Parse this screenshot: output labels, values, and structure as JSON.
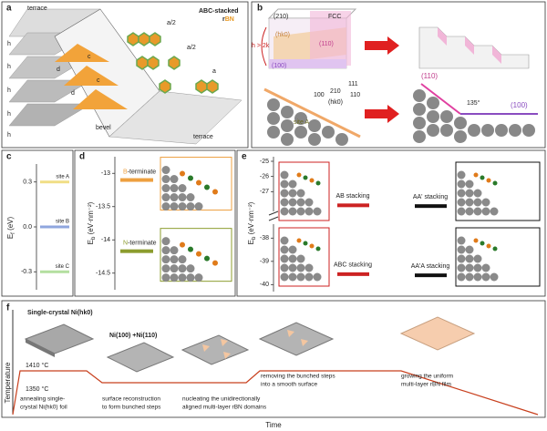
{
  "panel_a": {
    "label": "a",
    "title": "ABC-stacked",
    "material_prefix": "r",
    "material": "BN",
    "terrace": "terrace",
    "bevel": "bevel",
    "h": "h",
    "d": "d",
    "c": "c",
    "half_a": "a/2",
    "a": "a"
  },
  "panel_b": {
    "label": "b",
    "fcc": "FCC",
    "plane_210": "(210)",
    "plane_hk0": "(hk0)",
    "plane_110": "(110)",
    "plane_100": "(100)",
    "condition": "h > 2k",
    "dir_111": "111",
    "dir_100": "100",
    "dir_210": "210",
    "dir_110": "110",
    "site": "site A",
    "angle": "135°"
  },
  "panel_c": {
    "label": "c",
    "ylabel": "E",
    "ylabel_sub": "f",
    "ylabel_unit": " (eV)",
    "ylim": [
      -0.42,
      0.42
    ],
    "yticks": [
      0.3,
      {
        "value": 0,
        "label": "0.0"
      },
      -0.3
    ],
    "sites": [
      {
        "name": "site A",
        "value": 0.3,
        "color": "#f1de86"
      },
      {
        "name": "site B",
        "value": 0.0,
        "color": "#8fa6de"
      },
      {
        "name": "site C",
        "value": -0.3,
        "color": "#b4dfa0"
      }
    ]
  },
  "panel_d": {
    "label": "d",
    "ylabel": "E",
    "ylabel_sub": "b",
    "ylabel_unit": " (eV·nm⁻²)",
    "ylim": [
      -14.75,
      -12.75
    ],
    "yticks": [
      -13,
      -13.5,
      -14,
      -14.5
    ],
    "terminations": [
      {
        "prefix": "B",
        "name": "-terminate",
        "value": -13.1,
        "color": "#eea040"
      },
      {
        "prefix": "N",
        "name": "-terminate",
        "value": -14.17,
        "color": "#8c9c2e"
      }
    ]
  },
  "panel_e": {
    "label": "e",
    "ylabel": "E",
    "ylabel_sub": "b",
    "ylabel_unit": " (eV·nm⁻²)",
    "ylim_top": [
      -28.3,
      -24.7
    ],
    "yticks_top": [
      -25,
      -26,
      -27
    ],
    "ylim_bottom": [
      -40.3,
      -37.4
    ],
    "yticks_bottom": [
      -38,
      -39,
      -40
    ],
    "stackings": [
      {
        "name": "AB stacking",
        "value": -27.9,
        "color": "#cc2222"
      },
      {
        "name": "AA' stacking",
        "value": -27.95,
        "color": "#111111"
      },
      {
        "name": "ABC stacking",
        "value": -39.55,
        "color": "#cc2222"
      },
      {
        "name": "AA'A stacking",
        "value": -39.6,
        "color": "#111111"
      }
    ]
  },
  "panel_f": {
    "label": "f",
    "title": "Single-crystal Ni(hk0)",
    "subtitle": "Ni(100) +Ni(110)",
    "temp_high": "1410 °C",
    "temp_low": "1350 °C",
    "ylabel": "Temperature",
    "xlabel": "Time",
    "steps": [
      [
        "annealing single-",
        "crystal Ni(hk0) foil"
      ],
      [
        "surface reconstruction",
        "to form bunched steps"
      ],
      [
        "nucleating the unidirectionally",
        "aligned multi-layer rBN domains"
      ],
      [
        "removing the bunched steps",
        "into a smooth surface"
      ],
      [
        "growing the uniform",
        "multi-layer rBN film"
      ]
    ]
  }
}
